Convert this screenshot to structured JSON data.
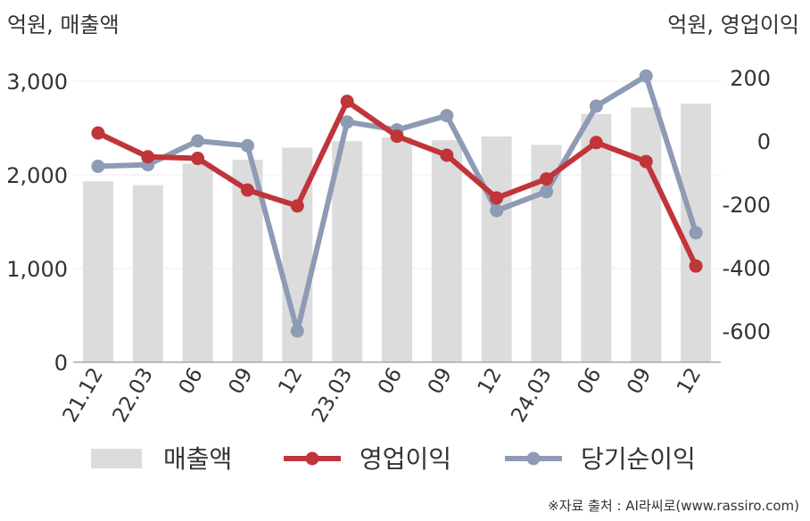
{
  "chart_data": {
    "type": "bar+line",
    "left_unit_label": "억원, 매출액",
    "right_unit_label": "억원, 영업이익",
    "categories": [
      "21.12",
      "22.03",
      "06",
      "09",
      "12",
      "23.03",
      "06",
      "09",
      "12",
      "24.03",
      "06",
      "09",
      "12"
    ],
    "left_axis": {
      "ticks": [
        "3,000",
        "2,000",
        "1,000",
        "0"
      ],
      "tick_values": [
        3000,
        2000,
        1000,
        0
      ],
      "ylim": [
        0,
        3000
      ]
    },
    "right_axis": {
      "ticks": [
        "200",
        "0",
        "-200",
        "-400",
        "-600"
      ],
      "tick_values": [
        200,
        0,
        -200,
        -400,
        -600
      ],
      "ylim": [
        -690,
        200
      ]
    },
    "grid": true,
    "legend_placement": "bottom",
    "series": [
      {
        "name": "매출액",
        "kind": "bar",
        "axis": "left",
        "color": "#dcdcdc",
        "values": [
          1930,
          1890,
          2120,
          2160,
          2290,
          2360,
          2400,
          2370,
          2410,
          2320,
          2650,
          2720,
          2760
        ]
      },
      {
        "name": "영업이익",
        "kind": "line",
        "axis": "right",
        "color": "#c0353a",
        "values": [
          25,
          -50,
          -55,
          -155,
          -205,
          125,
          15,
          -45,
          -180,
          -120,
          -5,
          -65,
          -395
        ]
      },
      {
        "name": "당기순이익",
        "kind": "line",
        "axis": "right",
        "color": "#8e9bb5",
        "values": [
          -80,
          -75,
          0,
          -15,
          -600,
          60,
          35,
          80,
          -220,
          -160,
          110,
          205,
          -290
        ]
      }
    ],
    "source": "※자료 출처 : AI라씨로(www.rassiro.com)"
  }
}
